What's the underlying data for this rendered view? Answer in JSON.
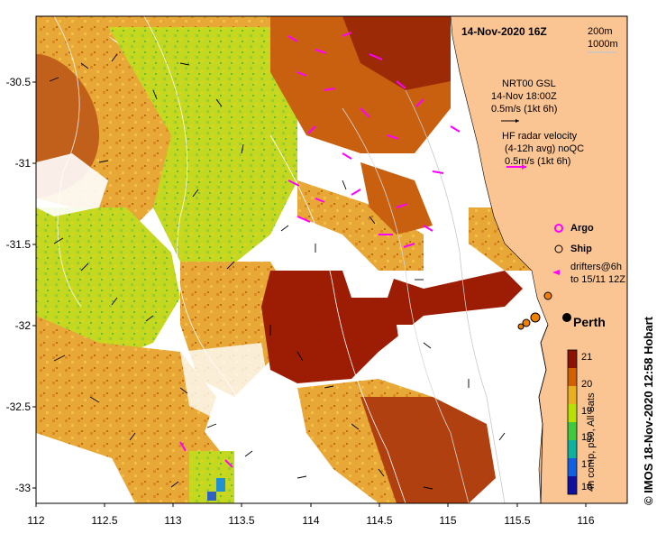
{
  "map": {
    "title": "14-Nov-2020 16Z",
    "credit": "© IMOS 18-Nov-2020 12:58 Hobart",
    "depth_contours": [
      "200m",
      "1000m"
    ],
    "lat_ticks": [
      "-30.5",
      "-31",
      "-31.5",
      "-32",
      "-32.5",
      "-33"
    ],
    "lon_ticks": [
      "112",
      "112.5",
      "113",
      "113.5",
      "114",
      "114.5",
      "115",
      "115.5",
      "116"
    ],
    "city": "Perth"
  },
  "legend": {
    "gsl_line1": "NRT00 GSL",
    "gsl_line2": "14-Nov 18:00Z",
    "gsl_scale": "0.5m/s (1kt 6h)",
    "hf_line1": "HF radar velocity",
    "hf_line2": "(4-12h avg) noQC",
    "hf_scale": "0.5m/s (1kt 6h)",
    "argo": "Argo",
    "ship": "Ship",
    "drifters_line1": "drifters@6h",
    "drifters_line2": "to 15/11 12Z"
  },
  "colorbar": {
    "label": "4h comp, p50, All Sats",
    "ticks": [
      "21",
      "20",
      "19",
      "18",
      "17",
      "16"
    ]
  },
  "colors": {
    "land": "#fbc493",
    "hot": "#a01a00",
    "warm": "#d86a00",
    "mid": "#f0b030",
    "cool": "#c8e000",
    "green": "#70cc30",
    "hfradar": "#ff00ff",
    "ship": "#f08000"
  }
}
